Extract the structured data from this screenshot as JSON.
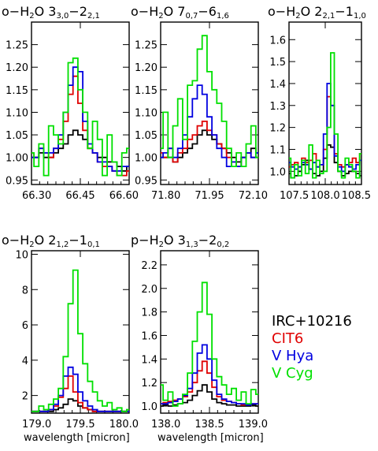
{
  "figure": {
    "xlabel": "wavelength [micron]",
    "legend": [
      {
        "label": "IRC+10216",
        "color": "#000000"
      },
      {
        "label": "CIT6",
        "color": "#e00000"
      },
      {
        "label": "V Hya",
        "color": "#0000e0"
      },
      {
        "label": "V Cyg",
        "color": "#00e000"
      }
    ]
  },
  "chart_data": [
    {
      "type": "line",
      "title_prefix": "o−H",
      "title_mid": "O  3",
      "title_sub1": "3,0",
      "title_dash": "−2",
      "title_sub2": "2,1",
      "xlim": [
        66.3,
        66.6
      ],
      "ylim": [
        0.94,
        1.3
      ],
      "xticks": [
        "66.30",
        "66.45",
        "66.60"
      ],
      "xtick_values": [
        66.3,
        66.45,
        66.6
      ],
      "yticks": [
        "0.95",
        "1.00",
        "1.05",
        "1.10",
        "1.15",
        "1.20",
        "1.25"
      ],
      "ytick_values": [
        0.95,
        1.0,
        1.05,
        1.1,
        1.15,
        1.2,
        1.25
      ],
      "x": [
        66.3,
        66.315,
        66.33,
        66.345,
        66.36,
        66.375,
        66.39,
        66.405,
        66.42,
        66.435,
        66.45,
        66.465,
        66.48,
        66.495,
        66.51,
        66.525,
        66.54,
        66.555,
        66.57,
        66.585,
        66.6
      ],
      "series": [
        {
          "name": "IRC+10216",
          "color": "#000000",
          "values": [
            1.0,
            1.0,
            1.01,
            1.0,
            1.0,
            1.01,
            1.02,
            1.03,
            1.05,
            1.06,
            1.05,
            1.04,
            1.02,
            1.01,
            1.0,
            1.0,
            0.99,
            0.99,
            0.98,
            0.97,
            0.98
          ]
        },
        {
          "name": "CIT6",
          "color": "#e00000",
          "values": [
            1.01,
            1.0,
            1.02,
            1.01,
            1.0,
            1.02,
            1.04,
            1.08,
            1.14,
            1.18,
            1.12,
            1.06,
            1.02,
            1.01,
            0.99,
            0.98,
            0.98,
            0.97,
            0.96,
            0.96,
            0.97
          ]
        },
        {
          "name": "V Hya",
          "color": "#0000e0",
          "values": [
            1.0,
            1.0,
            1.02,
            1.01,
            1.01,
            1.02,
            1.05,
            1.1,
            1.16,
            1.2,
            1.19,
            1.08,
            1.03,
            1.01,
            0.99,
            0.99,
            0.98,
            0.97,
            0.97,
            0.98,
            0.98
          ]
        },
        {
          "name": "V Cyg",
          "color": "#00e000",
          "values": [
            1.01,
            0.98,
            1.03,
            0.96,
            1.07,
            1.05,
            1.03,
            1.1,
            1.21,
            1.22,
            1.15,
            1.1,
            1.02,
            1.08,
            1.04,
            0.96,
            1.05,
            0.99,
            0.96,
            1.01,
            1.02
          ]
        }
      ]
    },
    {
      "type": "line",
      "title_prefix": "o−H",
      "title_mid": "O  7",
      "title_sub1": "0,7",
      "title_dash": "−6",
      "title_sub2": "1,6",
      "xlim": [
        71.8,
        72.1
      ],
      "ylim": [
        0.94,
        1.3
      ],
      "xticks": [
        "71.80",
        "71.95",
        "72.10"
      ],
      "xtick_values": [
        71.8,
        71.95,
        72.1
      ],
      "yticks": [
        "0.95",
        "1.00",
        "1.05",
        "1.10",
        "1.15",
        "1.20",
        "1.25"
      ],
      "ytick_values": [
        0.95,
        1.0,
        1.05,
        1.1,
        1.15,
        1.2,
        1.25
      ],
      "x": [
        71.8,
        71.815,
        71.83,
        71.845,
        71.86,
        71.875,
        71.89,
        71.905,
        71.92,
        71.935,
        71.95,
        71.965,
        71.98,
        71.995,
        72.01,
        72.025,
        72.04,
        72.055,
        72.07,
        72.085,
        72.1
      ],
      "series": [
        {
          "name": "IRC+10216",
          "color": "#000000",
          "values": [
            1.0,
            1.0,
            1.0,
            0.99,
            1.0,
            1.01,
            1.02,
            1.03,
            1.05,
            1.06,
            1.05,
            1.04,
            1.03,
            1.02,
            1.01,
            1.0,
            0.99,
            1.0,
            1.01,
            1.02,
            1.01
          ]
        },
        {
          "name": "CIT6",
          "color": "#e00000",
          "values": [
            1.01,
            1.0,
            1.02,
            0.99,
            1.01,
            1.02,
            1.04,
            1.05,
            1.07,
            1.08,
            1.06,
            1.05,
            1.03,
            1.02,
            1.0,
            0.99,
            0.98,
            1.0,
            1.01,
            1.0,
            1.0
          ]
        },
        {
          "name": "V Hya",
          "color": "#0000e0",
          "values": [
            1.0,
            1.01,
            1.02,
            1.0,
            1.02,
            1.05,
            1.09,
            1.13,
            1.16,
            1.14,
            1.09,
            1.05,
            1.02,
            1.0,
            0.98,
            0.99,
            0.98,
            1.0,
            1.01,
            1.0,
            1.01
          ]
        },
        {
          "name": "V Cyg",
          "color": "#00e000",
          "values": [
            1.02,
            1.1,
            1.0,
            1.07,
            1.13,
            1.04,
            1.16,
            1.17,
            1.24,
            1.27,
            1.19,
            1.15,
            1.12,
            1.08,
            1.02,
            0.98,
            1.01,
            0.98,
            1.03,
            1.07,
            1.0
          ]
        }
      ]
    },
    {
      "type": "line",
      "title_prefix": "o−H",
      "title_mid": "O  2",
      "title_sub1": "2,1",
      "title_dash": "−1",
      "title_sub2": "1,0",
      "xlim": [
        107.5,
        108.5
      ],
      "ylim": [
        0.94,
        1.68
      ],
      "xticks": [
        "107.5",
        "108.0",
        "108.5"
      ],
      "xtick_values": [
        107.5,
        108.0,
        108.5
      ],
      "yticks": [
        "1.0",
        "1.1",
        "1.2",
        "1.3",
        "1.4",
        "1.5",
        "1.6"
      ],
      "ytick_values": [
        1.0,
        1.1,
        1.2,
        1.3,
        1.4,
        1.5,
        1.6
      ],
      "x": [
        107.5,
        107.55,
        107.6,
        107.65,
        107.7,
        107.75,
        107.8,
        107.85,
        107.9,
        107.95,
        108.0,
        108.05,
        108.1,
        108.15,
        108.2,
        108.25,
        108.3,
        108.35,
        108.4,
        108.45,
        108.5
      ],
      "series": [
        {
          "name": "IRC+10216",
          "color": "#000000",
          "values": [
            0.99,
            0.97,
            0.98,
            1.0,
            1.03,
            1.05,
            1.01,
            0.99,
            0.98,
            1.0,
            1.06,
            1.12,
            1.11,
            1.04,
            1.0,
            0.98,
            0.99,
            1.0,
            1.0,
            0.99,
            0.98
          ]
        },
        {
          "name": "CIT6",
          "color": "#e00000",
          "values": [
            1.02,
            1.03,
            1.04,
            1.02,
            1.06,
            1.04,
            1.05,
            1.08,
            1.02,
            1.03,
            1.1,
            1.34,
            1.3,
            1.08,
            1.03,
            1.02,
            1.03,
            1.04,
            1.06,
            1.04,
            1.08
          ]
        },
        {
          "name": "V Hya",
          "color": "#0000e0",
          "values": [
            1.04,
            1.02,
            1.01,
            1.02,
            1.04,
            1.03,
            1.01,
            1.04,
            1.02,
            1.03,
            1.17,
            1.4,
            1.3,
            1.07,
            1.02,
            1.0,
            1.03,
            1.02,
            1.01,
            1.03,
            1.05
          ]
        },
        {
          "name": "V Cyg",
          "color": "#00e000",
          "values": [
            1.06,
            0.97,
            1.03,
            0.98,
            1.05,
            0.99,
            1.12,
            0.97,
            1.05,
            0.99,
            1.0,
            1.2,
            1.54,
            1.17,
            1.0,
            0.97,
            1.06,
            1.03,
            1.0,
            0.97,
            1.08
          ]
        }
      ]
    },
    {
      "type": "line",
      "title_prefix": "o−H",
      "title_mid": "O  2",
      "title_sub1": "1,2",
      "title_dash": "−1",
      "title_sub2": "0,1",
      "xlim": [
        179.0,
        180.0
      ],
      "ylim": [
        1.0,
        10.2
      ],
      "xticks": [
        "179.0",
        "179.5",
        "180.0"
      ],
      "xtick_values": [
        179.0,
        179.5,
        180.0
      ],
      "yticks": [
        "2",
        "4",
        "6",
        "8",
        "10"
      ],
      "ytick_values": [
        2,
        4,
        6,
        8,
        10
      ],
      "x": [
        179.0,
        179.05,
        179.1,
        179.15,
        179.2,
        179.25,
        179.3,
        179.35,
        179.4,
        179.45,
        179.5,
        179.55,
        179.6,
        179.65,
        179.7,
        179.75,
        179.8,
        179.85,
        179.9,
        179.95,
        180.0
      ],
      "series": [
        {
          "name": "IRC+10216",
          "color": "#000000",
          "values": [
            1.1,
            1.1,
            1.1,
            1.1,
            1.1,
            1.2,
            1.3,
            1.5,
            1.8,
            1.7,
            1.4,
            1.3,
            1.2,
            1.1,
            1.1,
            1.1,
            1.1,
            1.1,
            1.1,
            1.1,
            1.1
          ]
        },
        {
          "name": "CIT6",
          "color": "#e00000",
          "values": [
            1.1,
            1.1,
            1.1,
            1.1,
            1.2,
            1.4,
            1.9,
            2.4,
            3.1,
            2.2,
            1.6,
            1.3,
            1.2,
            1.1,
            1.1,
            1.1,
            1.1,
            1.1,
            1.1,
            1.1,
            1.1
          ]
        },
        {
          "name": "V Hya",
          "color": "#0000e0",
          "values": [
            1.1,
            1.1,
            1.1,
            1.1,
            1.2,
            1.5,
            2.0,
            3.1,
            3.6,
            3.2,
            2.2,
            1.7,
            1.4,
            1.2,
            1.1,
            1.1,
            1.1,
            1.1,
            1.1,
            1.1,
            1.1
          ]
        },
        {
          "name": "V Cyg",
          "color": "#00e000",
          "values": [
            1.1,
            1.1,
            1.4,
            1.2,
            1.5,
            1.8,
            2.4,
            4.2,
            7.2,
            9.1,
            5.5,
            3.8,
            2.8,
            2.2,
            1.7,
            1.4,
            1.6,
            1.2,
            1.3,
            1.1,
            1.2
          ]
        }
      ]
    },
    {
      "type": "line",
      "title_prefix": "p−H",
      "title_mid": "O  3",
      "title_sub1": "1,3",
      "title_dash": "−2",
      "title_sub2": "0,2",
      "xlim": [
        138.0,
        139.0
      ],
      "ylim": [
        0.94,
        2.32
      ],
      "xticks": [
        "138.0",
        "138.5",
        "139.0"
      ],
      "xtick_values": [
        138.0,
        138.5,
        139.0
      ],
      "yticks": [
        "1.0",
        "1.2",
        "1.4",
        "1.6",
        "1.8",
        "2.0",
        "2.2"
      ],
      "ytick_values": [
        1.0,
        1.2,
        1.4,
        1.6,
        1.8,
        2.0,
        2.2
      ],
      "x": [
        138.0,
        138.05,
        138.1,
        138.15,
        138.2,
        138.25,
        138.3,
        138.35,
        138.4,
        138.45,
        138.5,
        138.55,
        138.6,
        138.65,
        138.7,
        138.75,
        138.8,
        138.85,
        138.9,
        138.95,
        139.0
      ],
      "series": [
        {
          "name": "IRC+10216",
          "color": "#000000",
          "values": [
            1.0,
            1.01,
            1.0,
            1.01,
            1.02,
            1.03,
            1.05,
            1.09,
            1.13,
            1.18,
            1.12,
            1.06,
            1.03,
            1.02,
            1.01,
            1.01,
            1.0,
            1.0,
            1.0,
            1.01,
            1.0
          ]
        },
        {
          "name": "CIT6",
          "color": "#e00000",
          "values": [
            1.02,
            1.03,
            1.04,
            1.05,
            1.06,
            1.08,
            1.12,
            1.2,
            1.3,
            1.38,
            1.28,
            1.16,
            1.08,
            1.05,
            1.04,
            1.03,
            1.02,
            1.01,
            1.01,
            1.02,
            1.02
          ]
        },
        {
          "name": "V Hya",
          "color": "#0000e0",
          "values": [
            1.02,
            1.02,
            1.03,
            1.04,
            1.06,
            1.09,
            1.15,
            1.28,
            1.45,
            1.52,
            1.4,
            1.22,
            1.1,
            1.06,
            1.04,
            1.03,
            1.02,
            1.02,
            1.01,
            1.02,
            1.02
          ]
        },
        {
          "name": "V Cyg",
          "color": "#00e000",
          "values": [
            1.18,
            1.05,
            1.12,
            1.0,
            1.02,
            1.1,
            1.28,
            1.55,
            1.8,
            2.05,
            1.78,
            1.4,
            1.25,
            1.18,
            1.1,
            1.15,
            1.05,
            1.12,
            1.02,
            1.14,
            1.1
          ]
        }
      ]
    }
  ]
}
